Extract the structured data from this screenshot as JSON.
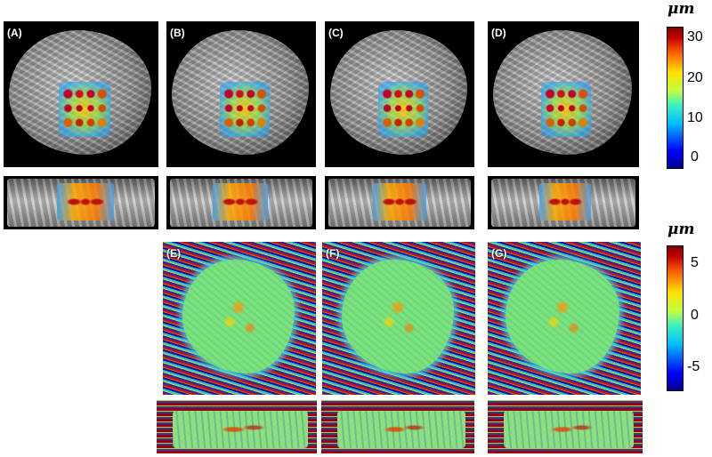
{
  "panels": {
    "a": "(A)",
    "b": "(B)",
    "c": "(C)",
    "d": "(D)",
    "e": "(E)",
    "f": "(F)",
    "g": "(G)"
  },
  "colorbar_top": {
    "unit": "μm",
    "ticks": [
      "30",
      "20",
      "10",
      "0"
    ],
    "range": [
      0,
      33
    ],
    "colormap": "jet"
  },
  "colorbar_bottom": {
    "unit": "μm",
    "ticks": [
      "5",
      "0",
      "-5"
    ],
    "range": [
      -7,
      7
    ],
    "colormap": "jet"
  }
}
